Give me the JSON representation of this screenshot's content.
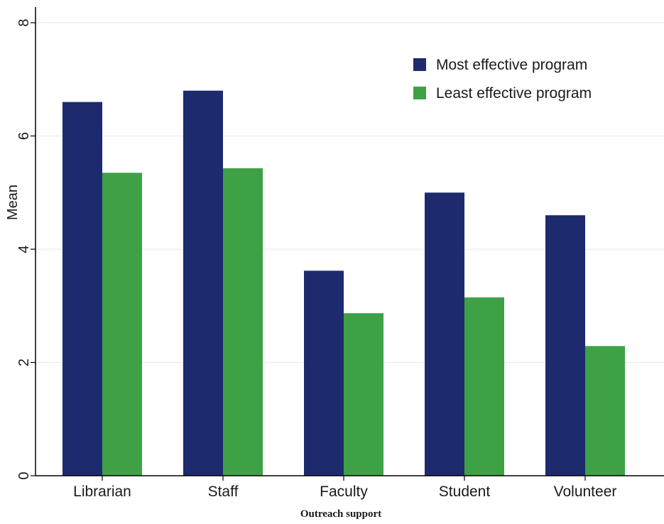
{
  "chart_data": {
    "type": "bar",
    "categories": [
      "Librarian",
      "Staff",
      "Faculty",
      "Student",
      "Volunteer"
    ],
    "series": [
      {
        "name": "Most effective program",
        "values": [
          6.6,
          6.8,
          3.62,
          5.0,
          4.6
        ],
        "color": "#1e2a6e"
      },
      {
        "name": "Least effective program",
        "values": [
          5.35,
          5.43,
          2.87,
          3.15,
          2.29
        ],
        "color": "#3fa145"
      }
    ],
    "xlabel": "Outreach support",
    "ylabel": "Mean",
    "ylim": [
      0,
      8
    ],
    "yticks": [
      0,
      2,
      4,
      6,
      8
    ],
    "grid": true,
    "legend_position": "top-right"
  }
}
